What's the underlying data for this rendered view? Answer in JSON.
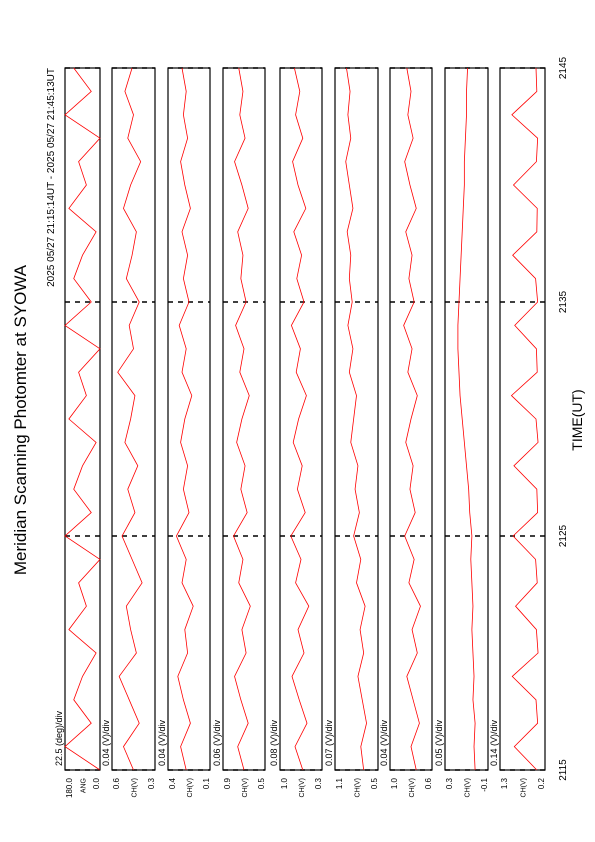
{
  "title": "Meridian Scanning Photomter at SYOWA",
  "time_range": "2025 05/27 21:15:14UT - 2025 05/27 21:45:13UT",
  "x_label": "TIME(UT)",
  "xlim": [
    2115,
    2145
  ],
  "xticks": [
    2115,
    2125,
    2135,
    2145
  ],
  "x": [
    2115,
    2116,
    2117,
    2118,
    2119,
    2120,
    2121,
    2122,
    2123,
    2124,
    2125,
    2126,
    2127,
    2128,
    2129,
    2130,
    2131,
    2132,
    2133,
    2134,
    2135,
    2136,
    2137,
    2138,
    2139,
    2140,
    2141,
    2142,
    2143,
    2144,
    2145
  ],
  "chart_data": [
    {
      "type": "line",
      "ylabel": "ANG",
      "scale_label": "22.5 (deg)/div",
      "color": "#ff0000",
      "ylim": [
        0,
        180
      ],
      "yticks": [
        {
          "value": 0,
          "label": "0.0"
        },
        {
          "value": 180,
          "label": "180.0"
        }
      ],
      "values": [
        0,
        180,
        45,
        135,
        90,
        20,
        160,
        70,
        110,
        0,
        180,
        45,
        135,
        90,
        20,
        160,
        70,
        110,
        0,
        180,
        45,
        135,
        90,
        20,
        160,
        70,
        110,
        0,
        180,
        45,
        135
      ]
    },
    {
      "type": "line",
      "ylabel": "CH(V)",
      "scale_label": "0.04 (V)/div",
      "color": "#ff0000",
      "ylim": [
        0.3,
        0.6
      ],
      "yticks": [
        0.3,
        0.6
      ],
      "values": [
        0.45,
        0.52,
        0.41,
        0.48,
        0.55,
        0.43,
        0.47,
        0.5,
        0.39,
        0.46,
        0.53,
        0.44,
        0.49,
        0.42,
        0.51,
        0.47,
        0.44,
        0.56,
        0.45,
        0.48,
        0.41,
        0.5,
        0.46,
        0.43,
        0.52,
        0.47,
        0.4,
        0.49,
        0.45,
        0.51,
        0.46
      ]
    },
    {
      "type": "line",
      "ylabel": "CH(V)",
      "scale_label": "0.04 (V)/div",
      "color": "#ff0000",
      "ylim": [
        0.1,
        0.4
      ],
      "yticks": [
        0.1,
        0.4
      ],
      "values": [
        0.27,
        0.31,
        0.24,
        0.29,
        0.33,
        0.26,
        0.28,
        0.22,
        0.3,
        0.27,
        0.34,
        0.25,
        0.29,
        0.26,
        0.31,
        0.28,
        0.23,
        0.3,
        0.27,
        0.32,
        0.25,
        0.29,
        0.26,
        0.3,
        0.24,
        0.28,
        0.31,
        0.26,
        0.29,
        0.27,
        0.3
      ]
    },
    {
      "type": "line",
      "ylabel": "CH(V)",
      "scale_label": "0.06 (V)/div",
      "color": "#ff0000",
      "ylim": [
        0.5,
        0.9
      ],
      "yticks": [
        0.5,
        0.9
      ],
      "values": [
        0.7,
        0.76,
        0.66,
        0.73,
        0.79,
        0.68,
        0.72,
        0.64,
        0.75,
        0.71,
        0.8,
        0.67,
        0.73,
        0.69,
        0.77,
        0.72,
        0.65,
        0.74,
        0.7,
        0.78,
        0.68,
        0.73,
        0.71,
        0.76,
        0.66,
        0.72,
        0.79,
        0.69,
        0.74,
        0.71,
        0.75
      ]
    },
    {
      "type": "line",
      "ylabel": "CH(V)",
      "scale_label": "0.08 (V)/div",
      "color": "#ff0000",
      "ylim": [
        0.3,
        1.0
      ],
      "yticks": [
        0.3,
        {
          "value": 1,
          "label": "1.0"
        }
      ],
      "values": [
        0.62,
        0.75,
        0.55,
        0.68,
        0.8,
        0.6,
        0.7,
        0.52,
        0.74,
        0.65,
        0.82,
        0.58,
        0.71,
        0.63,
        0.78,
        0.69,
        0.56,
        0.73,
        0.66,
        0.81,
        0.6,
        0.72,
        0.64,
        0.77,
        0.57,
        0.7,
        0.79,
        0.62,
        0.74,
        0.67,
        0.76
      ]
    },
    {
      "type": "line",
      "ylabel": "CH(V)",
      "scale_label": "0.07 (V)/div",
      "color": "#ff0000",
      "ylim": [
        0.5,
        1.1
      ],
      "yticks": [
        0.5,
        1.1
      ],
      "values": [
        0.7,
        0.74,
        0.66,
        0.72,
        0.78,
        0.7,
        0.75,
        0.68,
        0.8,
        0.74,
        0.84,
        0.76,
        0.82,
        0.78,
        0.88,
        0.84,
        0.8,
        0.9,
        0.85,
        0.92,
        0.86,
        0.9,
        0.88,
        0.93,
        0.85,
        0.9,
        0.95,
        0.88,
        0.92,
        0.89,
        0.94
      ]
    },
    {
      "type": "line",
      "ylabel": "CH(V)",
      "scale_label": "0.04 (V)/div",
      "color": "#ff0000",
      "ylim": [
        0.6,
        1.0
      ],
      "yticks": [
        0.6,
        {
          "value": 1,
          "label": "1.0"
        }
      ],
      "values": [
        0.75,
        0.8,
        0.72,
        0.78,
        0.84,
        0.74,
        0.79,
        0.71,
        0.82,
        0.77,
        0.86,
        0.76,
        0.81,
        0.78,
        0.85,
        0.8,
        0.74,
        0.83,
        0.79,
        0.87,
        0.77,
        0.82,
        0.79,
        0.85,
        0.75,
        0.81,
        0.86,
        0.78,
        0.83,
        0.8,
        0.84
      ]
    },
    {
      "type": "line",
      "ylabel": "CH(V)",
      "scale_label": "0.05 (V)/div",
      "color": "#ff0000",
      "ylim": [
        -0.1,
        0.3
      ],
      "yticks": [
        -0.1,
        0.3
      ],
      "values": [
        0.02,
        0.03,
        0.02,
        0.04,
        0.03,
        0.04,
        0.05,
        0.04,
        0.05,
        0.06,
        0.05,
        0.07,
        0.08,
        0.1,
        0.12,
        0.14,
        0.16,
        0.17,
        0.18,
        0.18,
        0.17,
        0.16,
        0.15,
        0.14,
        0.13,
        0.12,
        0.12,
        0.11,
        0.1,
        0.1,
        0.09
      ]
    },
    {
      "type": "line",
      "ylabel": "CH(V)",
      "scale_label": "0.14 (V)/div",
      "color": "#ff0000",
      "ylim": [
        0.2,
        1.3
      ],
      "yticks": [
        0.2,
        1.3
      ],
      "values": [
        0.4,
        0.95,
        0.38,
        0.42,
        1.0,
        0.37,
        0.41,
        0.92,
        0.39,
        0.43,
        0.98,
        0.38,
        0.4,
        0.96,
        0.37,
        0.42,
        1.02,
        0.39,
        0.41,
        0.94,
        0.38,
        0.43,
        0.99,
        0.4,
        0.39,
        0.97,
        0.41,
        0.38,
        1.01,
        0.4,
        0.42
      ]
    }
  ]
}
